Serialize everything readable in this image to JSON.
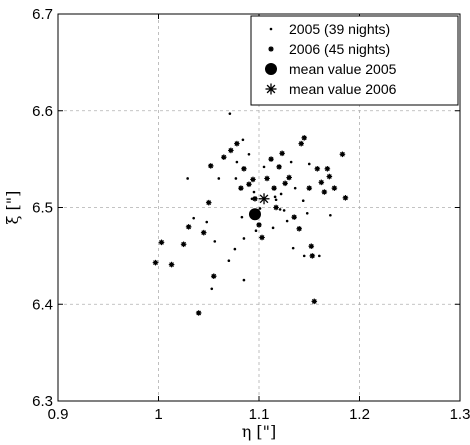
{
  "chart_data": {
    "type": "scatter",
    "title": "",
    "xlabel": "η [\"]",
    "ylabel": "ξ [\"]",
    "xlim": [
      0.9,
      1.3
    ],
    "ylim": [
      6.3,
      6.7
    ],
    "xticks": [
      "0.9",
      "1",
      "1.1",
      "1.2",
      "1.3"
    ],
    "yticks": [
      "6.3",
      "6.4",
      "6.5",
      "6.6",
      "6.7"
    ],
    "grid": true,
    "legend_position": "top-right",
    "series": [
      {
        "name": "2005 (39 nights)",
        "marker": "dot",
        "points": [
          [
            1.035,
            6.489
          ],
          [
            1.048,
            6.485
          ],
          [
            1.053,
            6.416
          ],
          [
            1.056,
            6.465
          ],
          [
            1.071,
            6.597
          ],
          [
            1.07,
            6.445
          ],
          [
            1.076,
            6.457
          ],
          [
            1.077,
            6.53
          ],
          [
            1.078,
            6.547
          ],
          [
            1.083,
            6.49
          ],
          [
            1.084,
            6.57
          ],
          [
            1.085,
            6.468
          ],
          [
            1.085,
            6.425
          ],
          [
            1.09,
            6.555
          ],
          [
            1.093,
            6.509
          ],
          [
            1.095,
            6.516
          ],
          [
            1.097,
            6.476
          ],
          [
            1.099,
            6.497
          ],
          [
            1.101,
            6.499
          ],
          [
            1.105,
            6.542
          ],
          [
            1.114,
            6.479
          ],
          [
            1.116,
            6.511
          ],
          [
            1.117,
            6.508
          ],
          [
            1.121,
            6.498
          ],
          [
            1.122,
            6.514
          ],
          [
            1.125,
            6.497
          ],
          [
            1.128,
            6.486
          ],
          [
            1.129,
            6.53
          ],
          [
            1.132,
            6.547
          ],
          [
            1.134,
            6.458
          ],
          [
            1.136,
            6.52
          ],
          [
            1.144,
            6.507
          ],
          [
            1.145,
            6.45
          ],
          [
            1.148,
            6.494
          ],
          [
            1.15,
            6.545
          ],
          [
            1.16,
            6.45
          ],
          [
            1.171,
            6.492
          ],
          [
            1.029,
            6.53
          ],
          [
            1.06,
            6.53
          ]
        ]
      },
      {
        "name": "2006 (45 nights)",
        "marker": "star-small",
        "points": [
          [
            0.997,
            6.443
          ],
          [
            1.003,
            6.464
          ],
          [
            1.013,
            6.441
          ],
          [
            1.025,
            6.462
          ],
          [
            1.03,
            6.48
          ],
          [
            1.04,
            6.391
          ],
          [
            1.045,
            6.474
          ],
          [
            1.05,
            6.505
          ],
          [
            1.052,
            6.543
          ],
          [
            1.055,
            6.429
          ],
          [
            1.065,
            6.552
          ],
          [
            1.072,
            6.559
          ],
          [
            1.078,
            6.566
          ],
          [
            1.082,
            6.52
          ],
          [
            1.085,
            6.54
          ],
          [
            1.09,
            6.524
          ],
          [
            1.094,
            6.529
          ],
          [
            1.096,
            6.509
          ],
          [
            1.098,
            6.495
          ],
          [
            1.1,
            6.482
          ],
          [
            1.103,
            6.469
          ],
          [
            1.108,
            6.53
          ],
          [
            1.112,
            6.55
          ],
          [
            1.115,
            6.52
          ],
          [
            1.117,
            6.5
          ],
          [
            1.12,
            6.542
          ],
          [
            1.123,
            6.556
          ],
          [
            1.126,
            6.525
          ],
          [
            1.13,
            6.531
          ],
          [
            1.135,
            6.49
          ],
          [
            1.14,
            6.478
          ],
          [
            1.142,
            6.566
          ],
          [
            1.145,
            6.572
          ],
          [
            1.15,
            6.52
          ],
          [
            1.152,
            6.46
          ],
          [
            1.153,
            6.45
          ],
          [
            1.155,
            6.403
          ],
          [
            1.158,
            6.54
          ],
          [
            1.162,
            6.526
          ],
          [
            1.165,
            6.516
          ],
          [
            1.168,
            6.54
          ],
          [
            1.17,
            6.532
          ],
          [
            1.175,
            6.52
          ],
          [
            1.183,
            6.555
          ],
          [
            1.186,
            6.51
          ]
        ]
      },
      {
        "name": "mean value 2005",
        "marker": "dot-large",
        "points": [
          [
            1.096,
            6.493
          ]
        ]
      },
      {
        "name": "mean value 2006",
        "marker": "asterisk",
        "points": [
          [
            1.105,
            6.509
          ]
        ]
      }
    ]
  }
}
